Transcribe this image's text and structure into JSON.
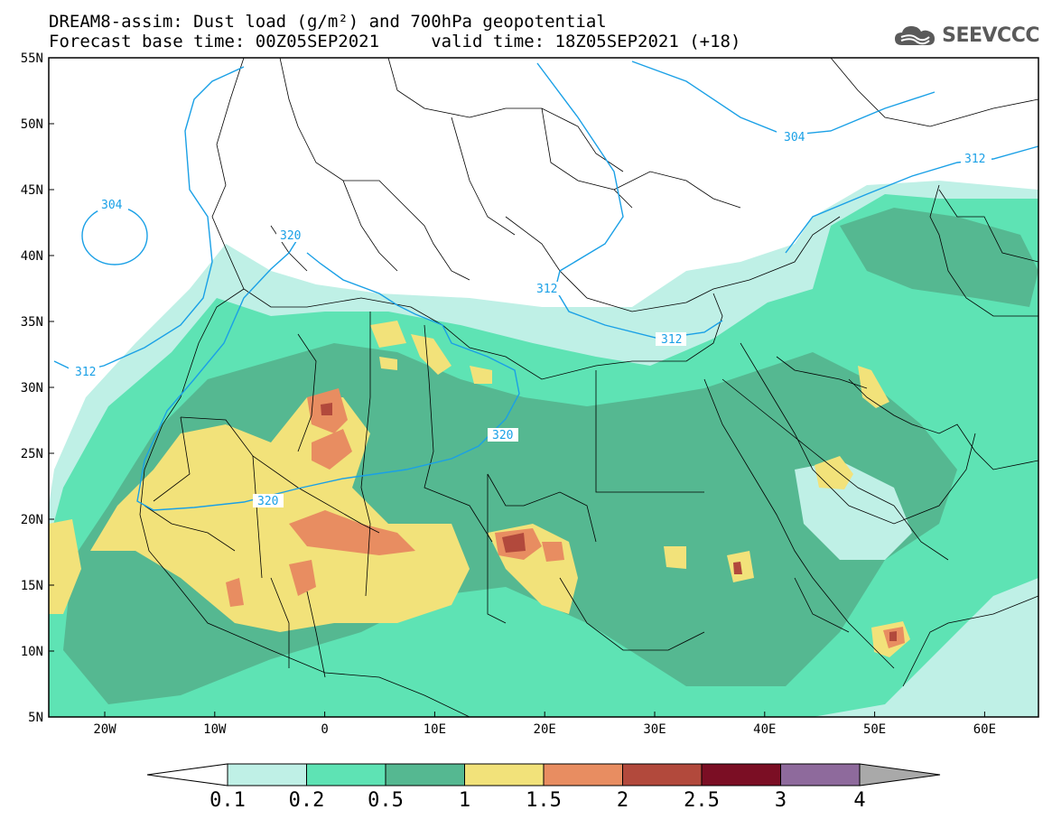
{
  "header": {
    "title_line1": "DREAM8-assim: Dust load (g/m²) and 700hPa geopotential",
    "title_line2": "Forecast base time: 00Z05SEP2021     valid time: 18Z05SEP2021 (+18)"
  },
  "logo": {
    "text": "SEEVCCC",
    "icon": "cloud-icon"
  },
  "map": {
    "lat_ticks": [
      "55N",
      "50N",
      "45N",
      "40N",
      "35N",
      "30N",
      "25N",
      "20N",
      "15N",
      "10N",
      "5N"
    ],
    "lon_ticks": [
      "20W",
      "10W",
      "0",
      "10E",
      "20E",
      "30E",
      "40E",
      "50E",
      "60E"
    ],
    "contour_labels": [
      "304",
      "304",
      "312",
      "312",
      "312",
      "320",
      "320",
      "320",
      "312"
    ]
  },
  "colorbar": {
    "tick_labels": [
      "0.1",
      "0.2",
      "0.5",
      "1",
      "1.5",
      "2",
      "2.5",
      "3",
      "4"
    ],
    "colors": [
      "#bff0e6",
      "#5ee3b4",
      "#55b891",
      "#f2e27a",
      "#e88d61",
      "#b2493c",
      "#7b0e24",
      "#8e6a9c",
      "#a9a9a9"
    ]
  }
}
